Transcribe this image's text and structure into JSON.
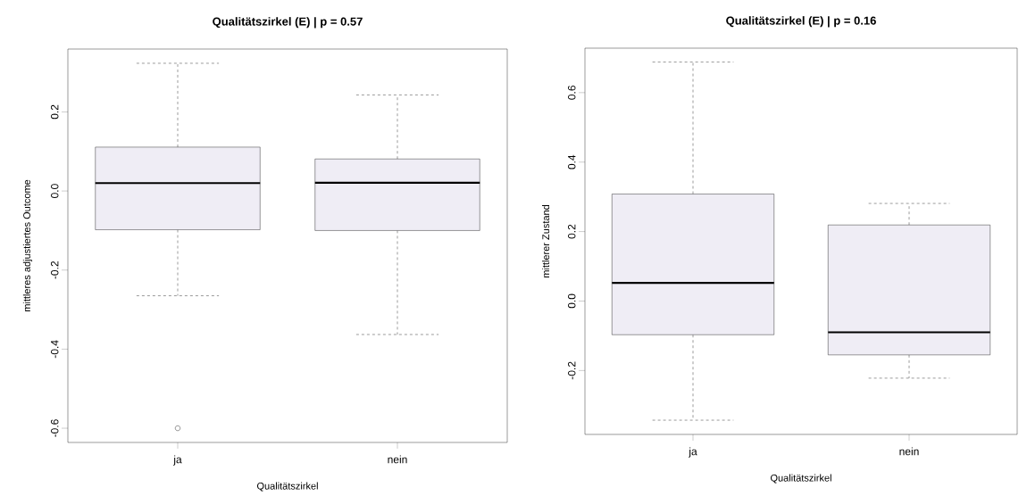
{
  "chart_data": [
    {
      "type": "box",
      "title": "Qualitätszirkel (E) | p = 0.57",
      "xlabel": "Qualitätszirkel",
      "ylabel": "mittleres adjustiertes Outcome",
      "categories": [
        "ja",
        "nein"
      ],
      "series": [
        {
          "color": "#efedf5",
          "boxes": [
            {
              "low": -0.265,
              "q1": -0.098,
              "median": 0.02,
              "q3": 0.111,
              "high": 0.323,
              "outliers": [
                -0.6
              ]
            },
            {
              "low": -0.363,
              "q1": -0.1,
              "median": 0.021,
              "q3": 0.081,
              "high": 0.243
            }
          ]
        }
      ],
      "ylim": [
        -0.636,
        0.359
      ],
      "yticks": [
        -0.6,
        -0.4,
        -0.2,
        {
          "value": 0,
          "label": "0.0"
        },
        0.2
      ]
    },
    {
      "type": "box",
      "title": "Qualitätszirkel (E) | p = 0.16",
      "xlabel": "Qualitätszirkel",
      "ylabel": "mittlerer Zustand",
      "categories": [
        "ja",
        "nein"
      ],
      "series": [
        {
          "color": "#efedf5",
          "boxes": [
            {
              "low": -0.343,
              "q1": -0.097,
              "median": 0.052,
              "q3": 0.308,
              "high": 0.688
            },
            {
              "low": -0.222,
              "q1": -0.155,
              "median": -0.09,
              "q3": 0.219,
              "high": 0.281
            }
          ]
        }
      ],
      "ylim": [
        -0.384,
        0.728
      ],
      "yticks": [
        -0.2,
        {
          "value": 0,
          "label": "0.0"
        },
        0.2,
        0.4,
        0.6
      ]
    }
  ]
}
